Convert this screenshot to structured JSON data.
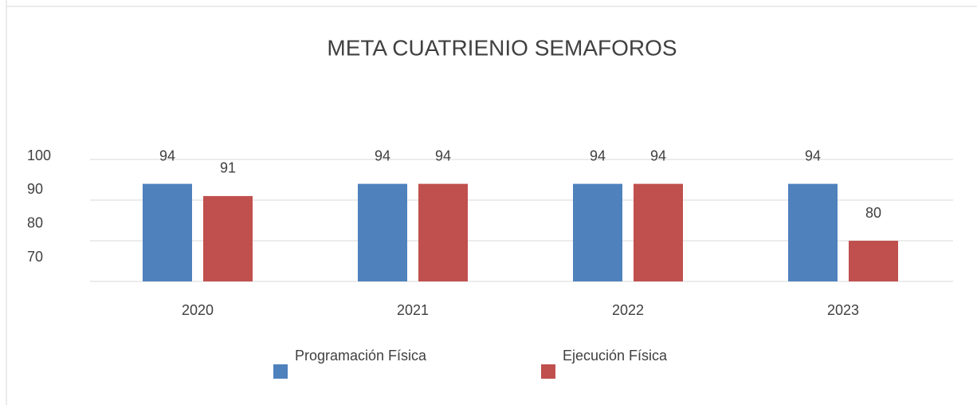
{
  "chart_data": {
    "type": "bar",
    "title": "META CUATRIENIO SEMAFOROS",
    "categories": [
      "2020",
      "2021",
      "2022",
      "2023"
    ],
    "series": [
      {
        "name": "Programación Física",
        "color": "#4f81bd",
        "values": [
          94,
          94,
          94,
          94
        ]
      },
      {
        "name": "Ejecución Física",
        "color": "#c0504d",
        "values": [
          91,
          94,
          94,
          80
        ]
      }
    ],
    "ylim": [
      70,
      100
    ],
    "yticks": [
      70,
      80,
      90,
      100
    ],
    "grid": true,
    "legend": "bottom"
  }
}
